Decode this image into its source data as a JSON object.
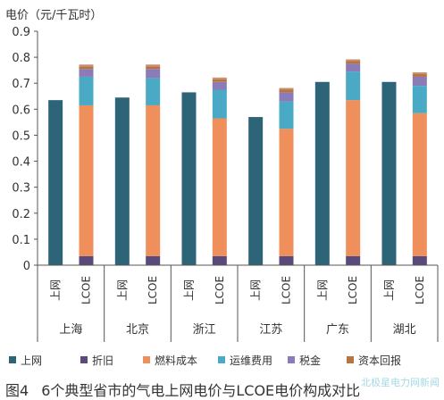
{
  "chart_data": {
    "type": "bar",
    "stacked": true,
    "ylabel": "电价（元/千瓦时）",
    "ylim": [
      0,
      0.9
    ],
    "yticks": [
      "0",
      "0.1",
      "0.2",
      "0.3",
      "0.4",
      "0.5",
      "0.6",
      "0.7",
      "0.8",
      "0.9"
    ],
    "bar_labels": [
      "上网",
      "LCOE"
    ],
    "groups": [
      "上海",
      "北京",
      "浙江",
      "江苏",
      "广东",
      "湖北"
    ],
    "grid": false,
    "legend_position": "bottom",
    "series": [
      {
        "name": "上网",
        "color": "#2e6478",
        "values": [
          [
            0.635,
            0
          ],
          [
            0.645,
            0
          ],
          [
            0.665,
            0
          ],
          [
            0.57,
            0
          ],
          [
            0.705,
            0
          ],
          [
            0.705,
            0
          ]
        ]
      },
      {
        "name": "折旧",
        "color": "#5a4a7c",
        "values": [
          [
            0,
            0.035
          ],
          [
            0,
            0.035
          ],
          [
            0,
            0.035
          ],
          [
            0,
            0.035
          ],
          [
            0,
            0.035
          ],
          [
            0,
            0.035
          ]
        ]
      },
      {
        "name": "燃料成本",
        "color": "#ef8f5c",
        "values": [
          [
            0,
            0.58
          ],
          [
            0,
            0.58
          ],
          [
            0,
            0.53
          ],
          [
            0,
            0.49
          ],
          [
            0,
            0.6
          ],
          [
            0,
            0.55
          ]
        ]
      },
      {
        "name": "运维费用",
        "color": "#4aaac6",
        "values": [
          [
            0,
            0.11
          ],
          [
            0,
            0.105
          ],
          [
            0,
            0.11
          ],
          [
            0,
            0.105
          ],
          [
            0,
            0.11
          ],
          [
            0,
            0.105
          ]
        ]
      },
      {
        "name": "税金",
        "color": "#8b7cb8",
        "values": [
          [
            0,
            0.03
          ],
          [
            0,
            0.035
          ],
          [
            0,
            0.03
          ],
          [
            0,
            0.035
          ],
          [
            0,
            0.03
          ],
          [
            0,
            0.035
          ]
        ]
      },
      {
        "name": "资本回报",
        "color": "#b8743e",
        "values": [
          [
            0,
            0.01
          ],
          [
            0,
            0.01
          ],
          [
            0,
            0.01
          ],
          [
            0,
            0.01
          ],
          [
            0,
            0.01
          ],
          [
            0,
            0.01
          ]
        ]
      }
    ]
  },
  "caption": {
    "number": "图4",
    "text": "6个典型省市的气电上网电价与LCOE电价构成对比"
  },
  "watermark": "北极星电力网新闻"
}
